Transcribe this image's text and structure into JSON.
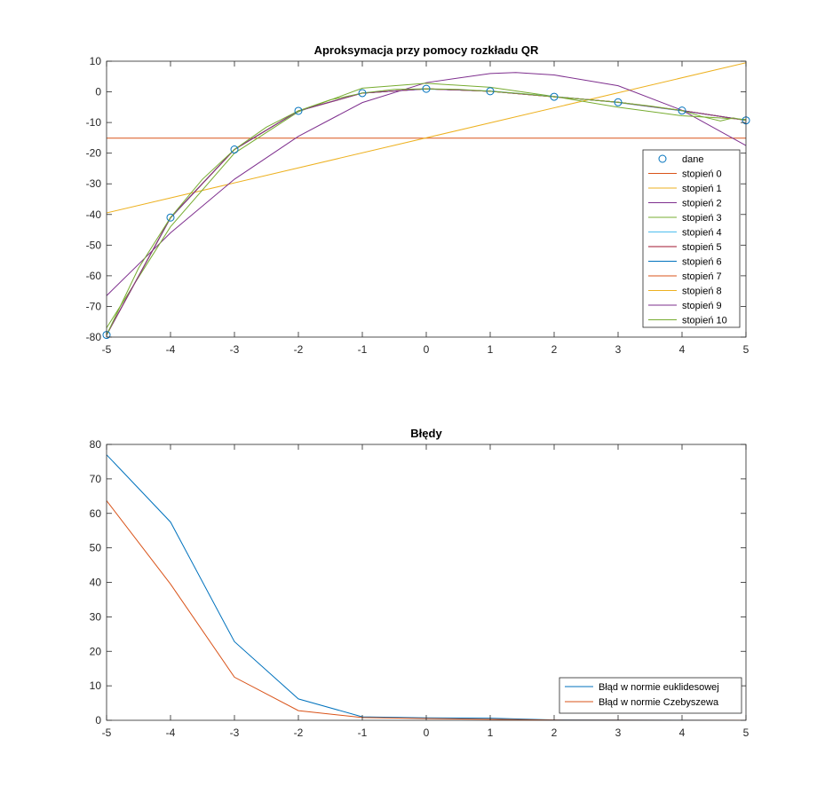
{
  "chart_data": [
    {
      "type": "line",
      "title": "Aproksymacja przy pomocy rozkładu QR",
      "xlabel": "",
      "ylabel": "",
      "xlim": [
        -5,
        5
      ],
      "ylim": [
        -80,
        10
      ],
      "x_ticks": [
        "-5",
        "-4",
        "-3",
        "-2",
        "-1",
        "0",
        "1",
        "2",
        "3",
        "4",
        "5"
      ],
      "y_ticks": [
        "10",
        "0",
        "-10",
        "-20",
        "-30",
        "-40",
        "-50",
        "-60",
        "-70",
        "-80"
      ],
      "grid": false,
      "legend_position": "right",
      "points": {
        "name": "dane",
        "color": "#0072bd",
        "marker": "circle",
        "x": [
          -5,
          -4,
          -3,
          -2,
          -1,
          0,
          1,
          2,
          3,
          4,
          5
        ],
        "y": [
          -79.3,
          -41,
          -18.8,
          -6.2,
          -0.4,
          1,
          0.2,
          -1.6,
          -3.4,
          -6.1,
          -9.3
        ]
      },
      "series": [
        {
          "name": "stopień 0",
          "color": "#d95319",
          "x": [
            -5,
            5
          ],
          "y": [
            -15.1,
            -15.1
          ]
        },
        {
          "name": "stopień 1",
          "color": "#edb120",
          "x": [
            -5,
            5
          ],
          "y": [
            -39.5,
            9.5
          ]
        },
        {
          "name": "stopień 2",
          "color": "#7e2f8e",
          "x": [
            -5,
            -4,
            -3,
            -2,
            -1,
            0,
            1,
            1.4,
            2,
            3,
            4,
            5
          ],
          "y": [
            -66.5,
            -46,
            -28.5,
            -14.5,
            -3.5,
            3,
            6,
            6.3,
            5.5,
            2,
            -6,
            -17.5
          ]
        },
        {
          "name": "stopień 3",
          "color": "#77ac30",
          "x": [
            -5,
            -4,
            -3,
            -2,
            -1,
            0,
            1,
            2,
            3,
            4,
            5
          ],
          "y": [
            -77,
            -44,
            -20,
            -6.5,
            1.2,
            2.8,
            1.5,
            -1.5,
            -5,
            -7.8,
            -9
          ]
        },
        {
          "name": "stopień 4",
          "color": "#4dbeee",
          "x": [
            -5,
            -4,
            -3,
            -2,
            -1,
            0,
            1,
            2,
            3,
            4,
            5
          ],
          "y": [
            -79.2,
            -41.2,
            -18.7,
            -6.3,
            -0.3,
            0.9,
            0.3,
            -1.5,
            -3.5,
            -6.2,
            -9.2
          ]
        },
        {
          "name": "stopień 5",
          "color": "#a2142f",
          "x": [
            -5,
            -4,
            -3,
            -2,
            -1,
            0,
            1,
            2,
            3,
            4,
            5
          ],
          "y": [
            -79.2,
            -41.1,
            -18.8,
            -6.2,
            -0.4,
            1,
            0.2,
            -1.6,
            -3.4,
            -6.1,
            -9.3
          ]
        },
        {
          "name": "stopień 6",
          "color": "#0072bd",
          "x": [
            -5,
            -4,
            -3,
            -2,
            -1,
            0,
            1,
            2,
            3,
            4,
            5
          ],
          "y": [
            -79.3,
            -41,
            -18.8,
            -6.2,
            -0.4,
            1,
            0.2,
            -1.6,
            -3.4,
            -6.1,
            -9.3
          ]
        },
        {
          "name": "stopień 7",
          "color": "#d95319",
          "x": [
            -5,
            -4,
            -3,
            -2,
            -1,
            0,
            1,
            2,
            3,
            4,
            5
          ],
          "y": [
            -79.3,
            -41,
            -18.8,
            -6.2,
            -0.4,
            1,
            0.2,
            -1.6,
            -3.4,
            -6.1,
            -9.3
          ]
        },
        {
          "name": "stopień 8",
          "color": "#edb120",
          "x": [
            -5,
            -4,
            -3,
            -2,
            -1,
            0,
            1,
            2,
            3,
            4,
            5
          ],
          "y": [
            -79.3,
            -41,
            -18.8,
            -6.2,
            -0.4,
            1,
            0.2,
            -1.6,
            -3.4,
            -6.1,
            -9.3
          ]
        },
        {
          "name": "stopień 9",
          "color": "#7e2f8e",
          "x": [
            -5,
            -4,
            -3,
            -2,
            -1,
            0,
            1,
            2,
            3,
            4,
            5
          ],
          "y": [
            -79.3,
            -41,
            -18.8,
            -6.2,
            -0.4,
            1,
            0.2,
            -1.6,
            -3.4,
            -6.1,
            -9.3
          ]
        },
        {
          "name": "stopień 10",
          "color": "#77ac30",
          "x": [
            -5,
            -4.5,
            -4,
            -3.5,
            -3,
            -2.5,
            -2,
            -1.5,
            -1,
            -0.5,
            0,
            0.5,
            1,
            1.5,
            2,
            2.5,
            3,
            3.5,
            4,
            4.3,
            4.6,
            4.8,
            5
          ],
          "y": [
            -79.3,
            -57.5,
            -41,
            -28.5,
            -18.8,
            -11.5,
            -6.2,
            -2.6,
            -0.4,
            0.8,
            1,
            0.8,
            0.2,
            -0.6,
            -1.6,
            -2.5,
            -3.4,
            -4.6,
            -6.1,
            -8,
            -9.5,
            -8.5,
            -9.3
          ]
        }
      ]
    },
    {
      "type": "line",
      "title": "Błędy",
      "xlabel": "",
      "ylabel": "",
      "xlim": [
        -5,
        5
      ],
      "ylim": [
        0,
        80
      ],
      "x_ticks": [
        "-5",
        "-4",
        "-3",
        "-2",
        "-1",
        "0",
        "1",
        "2",
        "3",
        "4",
        "5"
      ],
      "y_ticks": [
        "80",
        "70",
        "60",
        "50",
        "40",
        "30",
        "20",
        "10",
        "0"
      ],
      "grid": false,
      "legend_position": "bottom-right",
      "series": [
        {
          "name": "Błąd w normie euklidesowej",
          "color": "#0072bd",
          "x": [
            -5,
            -4,
            -3,
            -2,
            -1,
            0,
            1,
            2,
            3,
            4,
            5
          ],
          "y": [
            77,
            57.5,
            22.8,
            6.2,
            1.0,
            0.7,
            0.6,
            0.1,
            0.05,
            0.02,
            0.01
          ]
        },
        {
          "name": "Błąd w normie Czebyszewa",
          "color": "#d95319",
          "x": [
            -5,
            -4,
            -3,
            -2,
            -1,
            0,
            1,
            2,
            3,
            4,
            5
          ],
          "y": [
            63.7,
            39.5,
            12.5,
            2.8,
            0.8,
            0.5,
            0.3,
            0.05,
            0.02,
            0.01,
            0.0
          ]
        }
      ]
    }
  ]
}
